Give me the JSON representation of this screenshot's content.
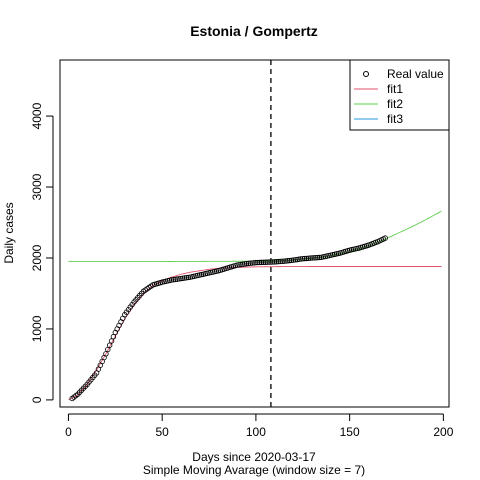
{
  "chart_data": {
    "type": "scatter",
    "title": "Estonia / Gompertz",
    "xlabel": "Days since 2020-03-17",
    "xlabel2": "Simple Moving Avarage (window size = 7)",
    "ylabel": "Daily cases",
    "xlim": [
      -4.5,
      203
    ],
    "ylim": [
      -100,
      4790
    ],
    "xticks": [
      0,
      50,
      100,
      150,
      200
    ],
    "yticks": [
      0,
      1000,
      2000,
      3000,
      4000
    ],
    "vline_x": 108,
    "legend_position": "top-right",
    "legend": [
      {
        "label": "Real value",
        "kind": "point",
        "color": "#000000"
      },
      {
        "label": "fit1",
        "kind": "line",
        "color": "#DF536B"
      },
      {
        "label": "fit2",
        "kind": "line",
        "color": "#61D04F"
      },
      {
        "label": "fit3",
        "kind": "line",
        "color": "#2297E6"
      }
    ],
    "series": [
      {
        "name": "Real value",
        "kind": "points",
        "knots": [
          [
            2,
            20
          ],
          [
            5,
            80
          ],
          [
            10,
            220
          ],
          [
            15,
            380
          ],
          [
            20,
            650
          ],
          [
            25,
            950
          ],
          [
            30,
            1200
          ],
          [
            35,
            1380
          ],
          [
            40,
            1530
          ],
          [
            45,
            1620
          ],
          [
            50,
            1660
          ],
          [
            55,
            1690
          ],
          [
            60,
            1710
          ],
          [
            65,
            1730
          ],
          [
            70,
            1760
          ],
          [
            75,
            1790
          ],
          [
            80,
            1820
          ],
          [
            85,
            1860
          ],
          [
            90,
            1900
          ],
          [
            95,
            1920
          ],
          [
            100,
            1935
          ],
          [
            105,
            1940
          ],
          [
            110,
            1945
          ],
          [
            115,
            1955
          ],
          [
            120,
            1970
          ],
          [
            125,
            1990
          ],
          [
            130,
            2000
          ],
          [
            135,
            2010
          ],
          [
            140,
            2040
          ],
          [
            145,
            2070
          ],
          [
            150,
            2110
          ],
          [
            155,
            2140
          ],
          [
            160,
            2180
          ],
          [
            165,
            2230
          ],
          [
            169,
            2280
          ]
        ]
      },
      {
        "name": "fit1",
        "kind": "line",
        "color": "#DF536B",
        "knots": [
          [
            0,
            0
          ],
          [
            5,
            70
          ],
          [
            10,
            220
          ],
          [
            15,
            420
          ],
          [
            20,
            650
          ],
          [
            25,
            900
          ],
          [
            30,
            1140
          ],
          [
            35,
            1340
          ],
          [
            40,
            1500
          ],
          [
            45,
            1610
          ],
          [
            50,
            1680
          ],
          [
            55,
            1730
          ],
          [
            60,
            1770
          ],
          [
            65,
            1800
          ],
          [
            70,
            1820
          ],
          [
            75,
            1840
          ],
          [
            80,
            1855
          ],
          [
            90,
            1868
          ],
          [
            100,
            1875
          ],
          [
            110,
            1878
          ],
          [
            130,
            1880
          ],
          [
            170,
            1880
          ],
          [
            199,
            1880
          ]
        ]
      },
      {
        "name": "fit2",
        "kind": "line",
        "color": "#61D04F",
        "knots": [
          [
            0,
            1950
          ],
          [
            50,
            1950
          ],
          [
            100,
            1955
          ],
          [
            110,
            1960
          ],
          [
            120,
            1975
          ],
          [
            130,
            1995
          ],
          [
            140,
            2030
          ],
          [
            150,
            2090
          ],
          [
            160,
            2170
          ],
          [
            170,
            2280
          ],
          [
            180,
            2400
          ],
          [
            190,
            2530
          ],
          [
            199,
            2660
          ]
        ]
      }
    ]
  }
}
